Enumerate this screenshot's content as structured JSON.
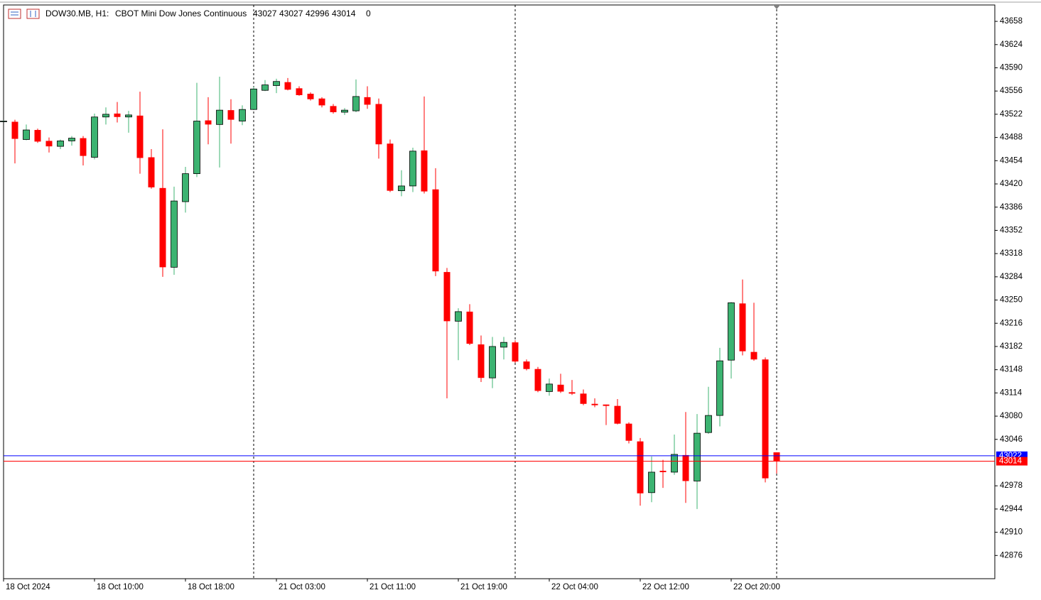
{
  "header": {
    "symbol": "DOW30.MB, H1:",
    "description": "CBOT Mini Dow Jones Continuous",
    "volume": 0
  },
  "chart_data": {
    "type": "candlestick",
    "categories": [
      "18 Oct 2024",
      null,
      null,
      null,
      null,
      null,
      null,
      null,
      "18 Oct 10:00",
      null,
      null,
      null,
      null,
      null,
      null,
      null,
      "18 Oct 18:00",
      null,
      null,
      null,
      null,
      null,
      null,
      null,
      "21 Oct 03:00",
      null,
      null,
      null,
      null,
      null,
      null,
      null,
      "21 Oct 11:00",
      null,
      null,
      null,
      null,
      null,
      null,
      null,
      "21 Oct 19:00",
      null,
      null,
      null,
      null,
      null,
      null,
      null,
      "22 Oct 04:00",
      null,
      null,
      null,
      null,
      null,
      null,
      null,
      "22 Oct 12:00",
      null,
      null,
      null,
      null,
      null,
      null,
      null,
      "22 Oct 20:00",
      null,
      null,
      null,
      null
    ],
    "open": [
      43512,
      43511,
      43485,
      43499,
      43483,
      43475,
      43483,
      43487,
      43459,
      43518,
      43523,
      43518,
      43520,
      43459,
      43414,
      43298,
      43394,
      43435,
      43513,
      43507,
      43528,
      43512,
      43529,
      43557,
      43564,
      43569,
      43560,
      43552,
      43545,
      43534,
      43525,
      43527,
      43547,
      43537,
      43479,
      43410,
      43417,
      43469,
      43412,
      43291,
      43219,
      43233,
      43185,
      43136,
      43181,
      43188,
      43160,
      43149,
      43116,
      43126,
      43115,
      43113,
      43098,
      43097,
      43095,
      43069,
      43043,
      42968,
      43000,
      42998,
      43023,
      42985,
      43056,
      43081,
      43162,
      43245,
      43174,
      43163,
      43027
    ],
    "high": [
      43513,
      43514,
      43507,
      43501,
      43488,
      43485,
      43490,
      43490,
      43523,
      43532,
      43540,
      43527,
      43555,
      43471,
      43500,
      43416,
      43445,
      43568,
      43547,
      43577,
      43544,
      43535,
      43562,
      43572,
      43574,
      43575,
      43563,
      43554,
      43547,
      43537,
      43531,
      43573,
      43563,
      43545,
      43485,
      43440,
      43473,
      43548,
      43443,
      43297,
      43238,
      43244,
      43198,
      43196,
      43196,
      43191,
      43163,
      43152,
      43135,
      43142,
      43133,
      43119,
      43106,
      43097,
      43105,
      43071,
      43048,
      43021,
      43016,
      43053,
      43086,
      43083,
      43123,
      43180,
      43247,
      43280,
      43246,
      43166,
      43027
    ],
    "low": [
      43511,
      43450,
      43484,
      43480,
      43466,
      43471,
      43476,
      43447,
      43456,
      43507,
      43510,
      43495,
      43435,
      43413,
      43284,
      43287,
      43378,
      43430,
      43478,
      43444,
      43479,
      43506,
      43528,
      43556,
      43553,
      43557,
      43549,
      43542,
      43532,
      43523,
      43521,
      43525,
      43530,
      43457,
      43408,
      43402,
      43408,
      43406,
      43285,
      43106,
      43162,
      43184,
      43130,
      43121,
      43163,
      43158,
      43147,
      43115,
      43110,
      43114,
      43111,
      43096,
      43093,
      43067,
      43068,
      43040,
      42949,
      42954,
      42975,
      42994,
      42953,
      42944,
      43054,
      43065,
      43135,
      43169,
      43161,
      42983,
      42996
    ],
    "close": [
      43512,
      43486,
      43499,
      43482,
      43475,
      43483,
      43487,
      43461,
      43518,
      43522,
      43518,
      43521,
      43458,
      43415,
      43298,
      43395,
      43435,
      43512,
      43507,
      43528,
      43514,
      43529,
      43559,
      43565,
      43570,
      43558,
      43550,
      43544,
      43535,
      43525,
      43528,
      43548,
      43536,
      43478,
      43410,
      43417,
      43468,
      43409,
      43292,
      43219,
      43233,
      43186,
      43136,
      43182,
      43188,
      43160,
      43149,
      43117,
      43127,
      43116,
      43113,
      43098,
      43096,
      43095,
      43069,
      43044,
      42967,
      42998,
      42998,
      43024,
      42985,
      43055,
      43081,
      43161,
      43246,
      43175,
      43163,
      42989,
      43014
    ],
    "up_color": "#3cb371",
    "down_color": "#ff0000",
    "ask_line": {
      "value": 43022,
      "color": "#0000ff"
    },
    "bid_color": "#ff0000",
    "ylim": [
      42842,
      43682
    ],
    "yticks": [
      43658,
      43624,
      43590,
      43556,
      43522,
      43488,
      43454,
      43420,
      43386,
      43352,
      43318,
      43284,
      43250,
      43216,
      43182,
      43148,
      43114,
      43080,
      43046,
      42978,
      42944,
      42910,
      42876
    ]
  }
}
